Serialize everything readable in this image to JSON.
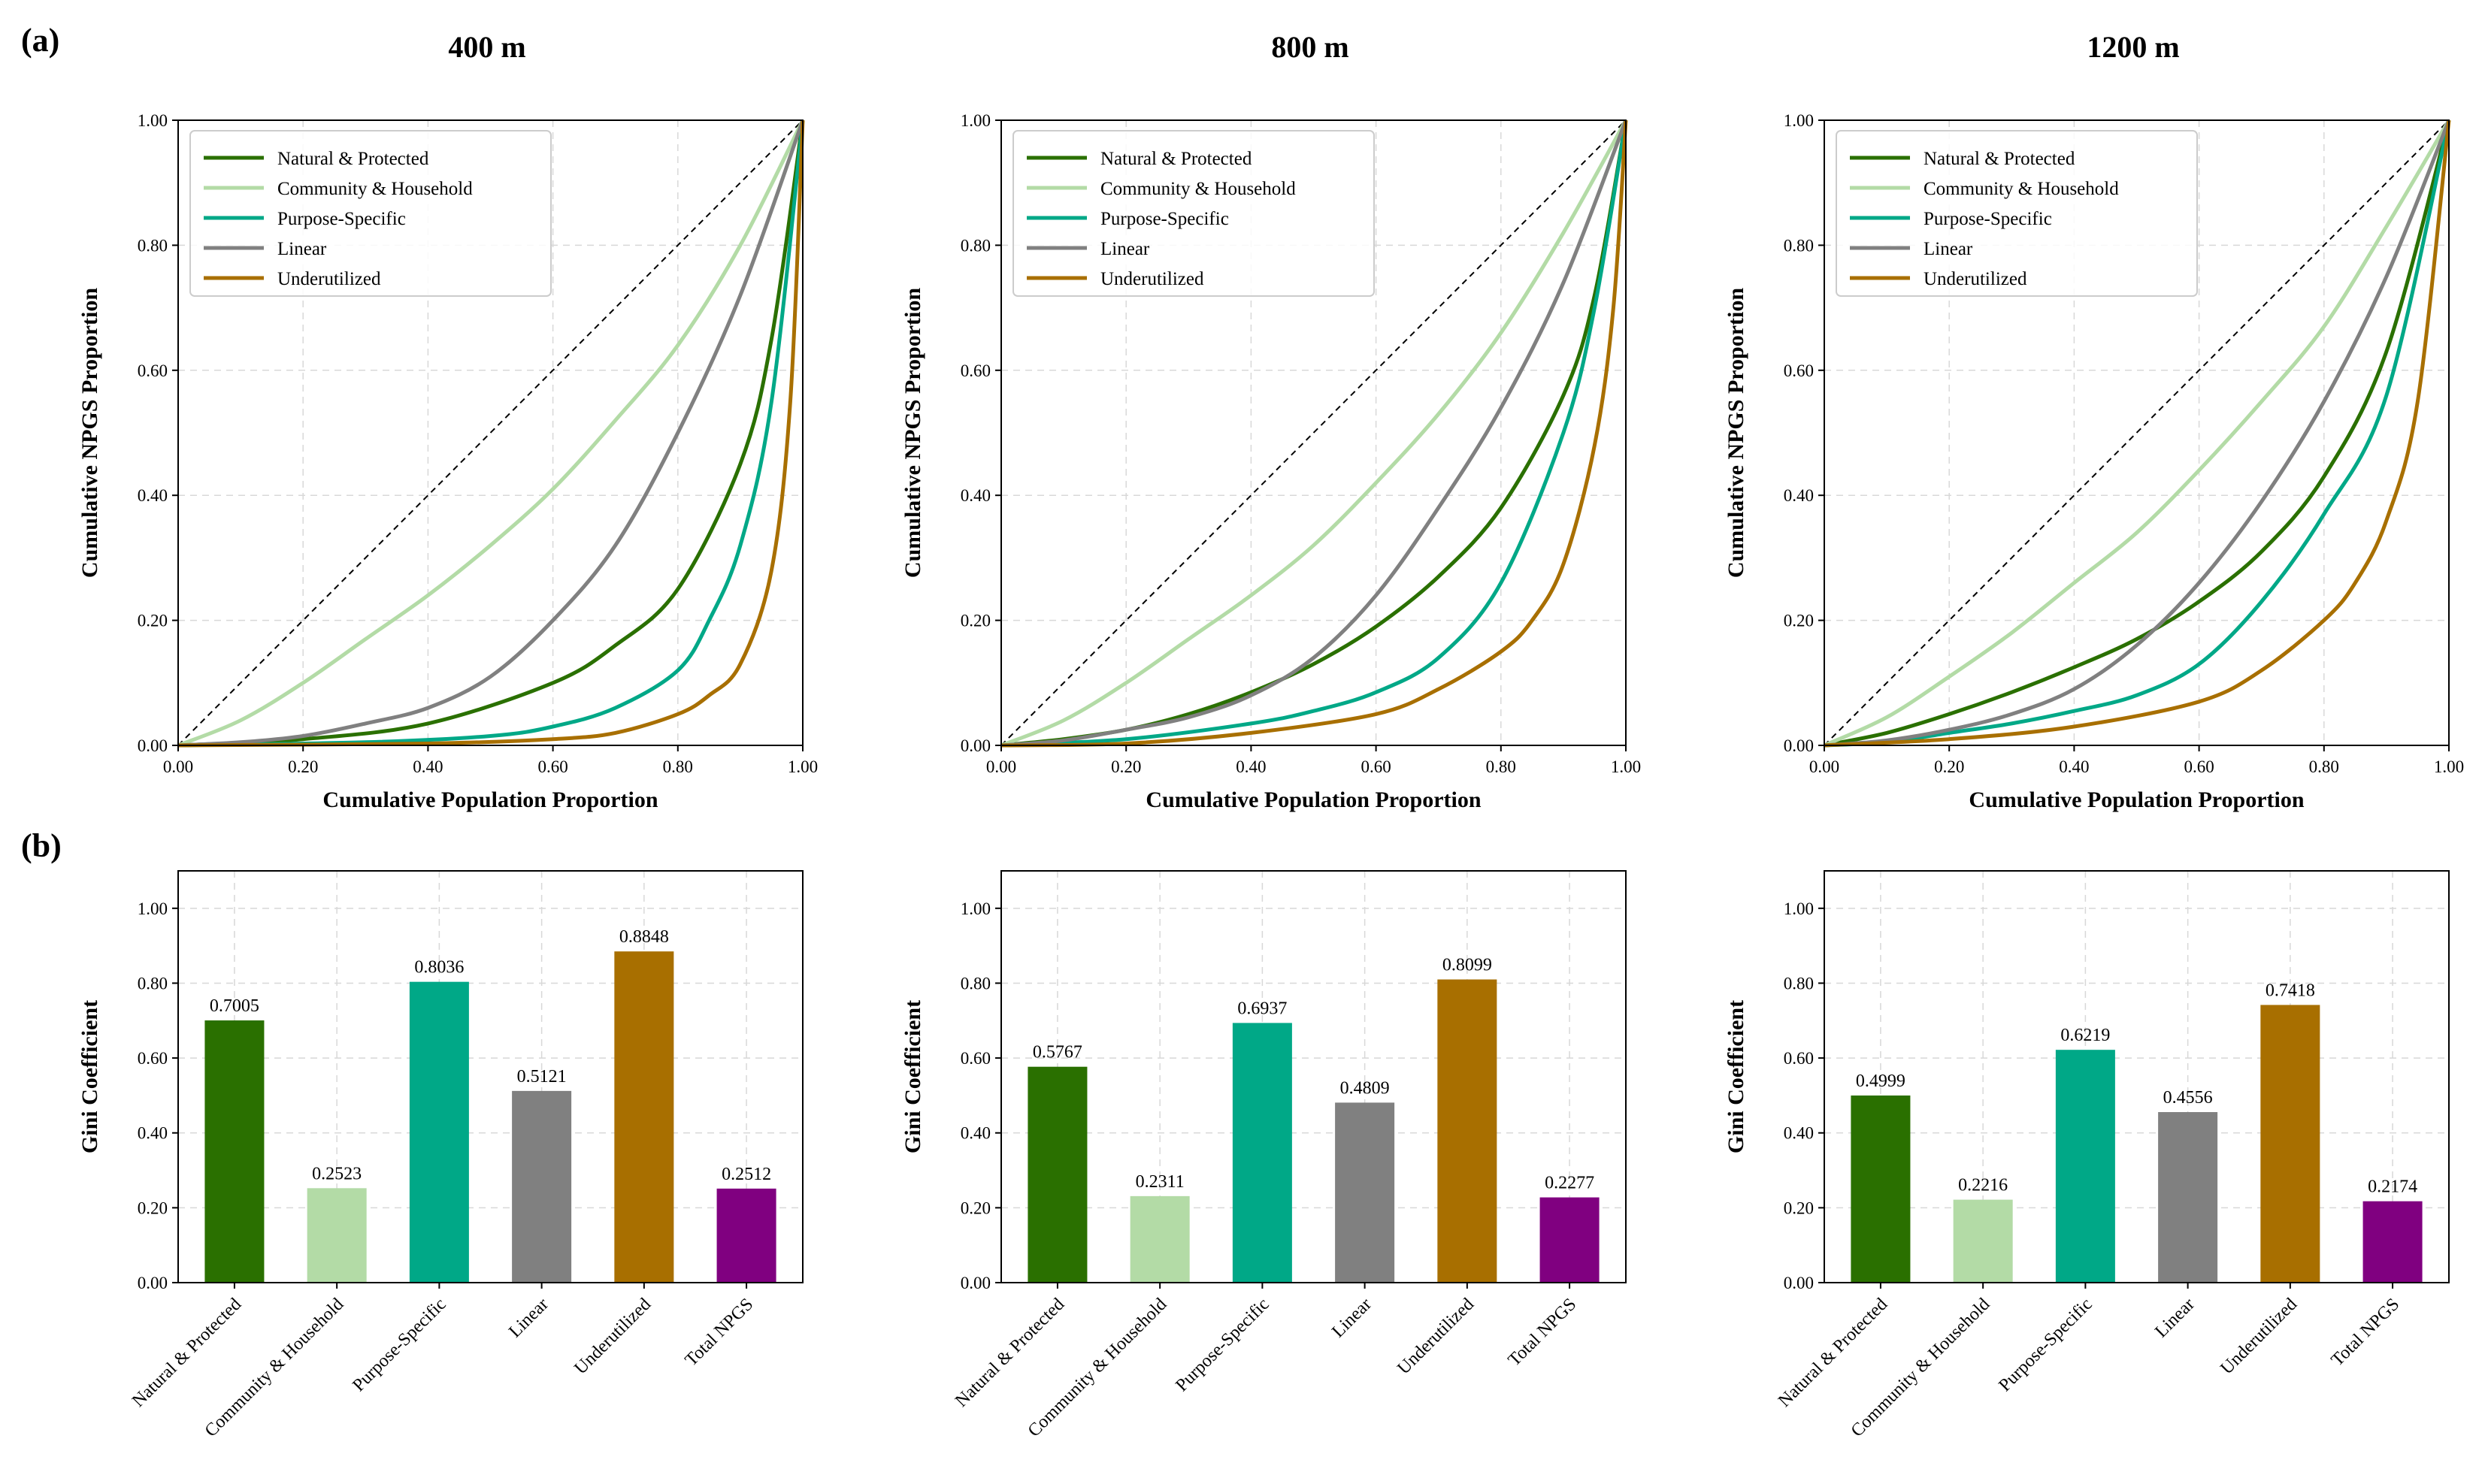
{
  "figure": {
    "panel_a_label": "(a)",
    "panel_b_label": "(b)",
    "column_titles": [
      "400 m",
      "800 m",
      "1200 m"
    ]
  },
  "colors": {
    "Natural & Protected": "#2a7000",
    "Community & Household": "#b3dba6",
    "Purpose-Specific": "#00a887",
    "Linear": "#808080",
    "Underutilized": "#a86f00",
    "Total NPGS": "#800080"
  },
  "chart_data": [
    {
      "type": "line",
      "title": "400 m",
      "xlabel": "Cumulative Population Proportion",
      "ylabel": "Cumulative NPGS Proportion",
      "xlim": [
        0,
        1
      ],
      "ylim": [
        0,
        1
      ],
      "ticks": [
        "0.00",
        "0.20",
        "0.40",
        "0.60",
        "0.80",
        "1.00"
      ],
      "legend": [
        "Natural & Protected",
        "Community & Household",
        "Purpose-Specific",
        "Linear",
        "Underutilized"
      ],
      "legend_position": "top-left",
      "diagonal": "equality line (dashed)",
      "series": [
        {
          "name": "Natural & Protected",
          "x": [
            0,
            0.2,
            0.4,
            0.6,
            0.7,
            0.8,
            0.9,
            0.95,
            1.0
          ],
          "y": [
            0,
            0.01,
            0.035,
            0.1,
            0.16,
            0.25,
            0.45,
            0.65,
            1.0
          ]
        },
        {
          "name": "Community & Household",
          "x": [
            0,
            0.1,
            0.2,
            0.3,
            0.4,
            0.5,
            0.6,
            0.7,
            0.8,
            0.9,
            1.0
          ],
          "y": [
            0,
            0.04,
            0.1,
            0.17,
            0.24,
            0.32,
            0.41,
            0.52,
            0.64,
            0.8,
            1.0
          ]
        },
        {
          "name": "Purpose-Specific",
          "x": [
            0,
            0.3,
            0.5,
            0.6,
            0.7,
            0.8,
            0.85,
            0.9,
            0.95,
            1.0
          ],
          "y": [
            0,
            0.005,
            0.015,
            0.03,
            0.06,
            0.12,
            0.2,
            0.32,
            0.55,
            1.0
          ]
        },
        {
          "name": "Linear",
          "x": [
            0,
            0.1,
            0.2,
            0.3,
            0.4,
            0.5,
            0.6,
            0.7,
            0.8,
            0.9,
            1.0
          ],
          "y": [
            0,
            0.005,
            0.015,
            0.035,
            0.06,
            0.11,
            0.2,
            0.32,
            0.5,
            0.72,
            1.0
          ]
        },
        {
          "name": "Underutilized",
          "x": [
            0,
            0.4,
            0.6,
            0.7,
            0.8,
            0.85,
            0.9,
            0.95,
            0.98,
            1.0
          ],
          "y": [
            0,
            0.003,
            0.01,
            0.02,
            0.05,
            0.08,
            0.13,
            0.28,
            0.55,
            1.0
          ]
        }
      ]
    },
    {
      "type": "line",
      "title": "800 m",
      "xlabel": "Cumulative Population Proportion",
      "ylabel": "Cumulative NPGS Proportion",
      "xlim": [
        0,
        1
      ],
      "ylim": [
        0,
        1
      ],
      "ticks": [
        "0.00",
        "0.20",
        "0.40",
        "0.60",
        "0.80",
        "1.00"
      ],
      "legend": [
        "Natural & Protected",
        "Community & Household",
        "Purpose-Specific",
        "Linear",
        "Underutilized"
      ],
      "legend_position": "top-left",
      "diagonal": "equality line (dashed)",
      "series": [
        {
          "name": "Natural & Protected",
          "x": [
            0,
            0.1,
            0.2,
            0.3,
            0.4,
            0.5,
            0.6,
            0.7,
            0.8,
            0.9,
            0.95,
            1.0
          ],
          "y": [
            0,
            0.01,
            0.025,
            0.05,
            0.085,
            0.13,
            0.19,
            0.27,
            0.38,
            0.56,
            0.72,
            1.0
          ]
        },
        {
          "name": "Community & Household",
          "x": [
            0,
            0.1,
            0.2,
            0.3,
            0.4,
            0.5,
            0.6,
            0.7,
            0.8,
            0.9,
            1.0
          ],
          "y": [
            0,
            0.04,
            0.1,
            0.17,
            0.24,
            0.32,
            0.42,
            0.53,
            0.66,
            0.82,
            1.0
          ]
        },
        {
          "name": "Purpose-Specific",
          "x": [
            0,
            0.2,
            0.4,
            0.5,
            0.6,
            0.7,
            0.8,
            0.9,
            0.95,
            1.0
          ],
          "y": [
            0,
            0.01,
            0.035,
            0.055,
            0.085,
            0.14,
            0.26,
            0.5,
            0.7,
            1.0
          ]
        },
        {
          "name": "Linear",
          "x": [
            0,
            0.1,
            0.2,
            0.3,
            0.4,
            0.5,
            0.6,
            0.7,
            0.8,
            0.9,
            1.0
          ],
          "y": [
            0,
            0.008,
            0.025,
            0.045,
            0.08,
            0.14,
            0.24,
            0.38,
            0.54,
            0.74,
            1.0
          ]
        },
        {
          "name": "Underutilized",
          "x": [
            0,
            0.2,
            0.4,
            0.6,
            0.7,
            0.8,
            0.85,
            0.9,
            0.95,
            0.98,
            1.0
          ],
          "y": [
            0,
            0.003,
            0.02,
            0.05,
            0.09,
            0.15,
            0.2,
            0.29,
            0.48,
            0.7,
            1.0
          ]
        }
      ]
    },
    {
      "type": "line",
      "title": "1200 m",
      "xlabel": "Cumulative Population Proportion",
      "ylabel": "Cumulative NPGS Proportion",
      "xlim": [
        0,
        1
      ],
      "ylim": [
        0,
        1
      ],
      "ticks": [
        "0.00",
        "0.20",
        "0.40",
        "0.60",
        "0.80",
        "1.00"
      ],
      "legend": [
        "Natural & Protected",
        "Community & Household",
        "Purpose-Specific",
        "Linear",
        "Underutilized"
      ],
      "legend_position": "top-left",
      "diagonal": "equality line (dashed)",
      "series": [
        {
          "name": "Natural & Protected",
          "x": [
            0,
            0.1,
            0.2,
            0.3,
            0.4,
            0.5,
            0.6,
            0.7,
            0.8,
            0.9,
            1.0
          ],
          "y": [
            0,
            0.02,
            0.05,
            0.085,
            0.125,
            0.17,
            0.23,
            0.31,
            0.43,
            0.63,
            1.0
          ]
        },
        {
          "name": "Community & Household",
          "x": [
            0,
            0.1,
            0.2,
            0.3,
            0.4,
            0.5,
            0.6,
            0.7,
            0.8,
            0.9,
            1.0
          ],
          "y": [
            0,
            0.045,
            0.11,
            0.18,
            0.26,
            0.34,
            0.44,
            0.55,
            0.67,
            0.83,
            1.0
          ]
        },
        {
          "name": "Purpose-Specific",
          "x": [
            0,
            0.1,
            0.2,
            0.3,
            0.4,
            0.5,
            0.6,
            0.7,
            0.8,
            0.9,
            1.0
          ],
          "y": [
            0,
            0.005,
            0.02,
            0.035,
            0.055,
            0.08,
            0.13,
            0.23,
            0.37,
            0.56,
            1.0
          ]
        },
        {
          "name": "Linear",
          "x": [
            0,
            0.1,
            0.2,
            0.3,
            0.4,
            0.5,
            0.6,
            0.7,
            0.8,
            0.9,
            1.0
          ],
          "y": [
            0,
            0.008,
            0.025,
            0.05,
            0.09,
            0.16,
            0.26,
            0.39,
            0.55,
            0.75,
            1.0
          ]
        },
        {
          "name": "Underutilized",
          "x": [
            0,
            0.2,
            0.4,
            0.6,
            0.7,
            0.8,
            0.85,
            0.9,
            0.95,
            1.0
          ],
          "y": [
            0,
            0.01,
            0.03,
            0.07,
            0.12,
            0.2,
            0.26,
            0.36,
            0.55,
            1.0
          ]
        }
      ]
    },
    {
      "type": "bar",
      "title": "400 m",
      "ylabel": "Gini Coefficient",
      "ylim": [
        0,
        1.1
      ],
      "ticks": [
        "0.00",
        "0.20",
        "0.40",
        "0.60",
        "0.80",
        "1.00"
      ],
      "categories": [
        "Natural & Protected",
        "Community & Household",
        "Purpose-Specific",
        "Linear",
        "Underutilized",
        "Total NPGS"
      ],
      "values": [
        0.7005,
        0.2523,
        0.8036,
        0.5121,
        0.8848,
        0.2512
      ],
      "labels": [
        "0.7005",
        "0.2523",
        "0.8036",
        "0.5121",
        "0.8848",
        "0.2512"
      ]
    },
    {
      "type": "bar",
      "title": "800 m",
      "ylabel": "Gini Coefficient",
      "ylim": [
        0,
        1.1
      ],
      "ticks": [
        "0.00",
        "0.20",
        "0.40",
        "0.60",
        "0.80",
        "1.00"
      ],
      "categories": [
        "Natural & Protected",
        "Community & Household",
        "Purpose-Specific",
        "Linear",
        "Underutilized",
        "Total NPGS"
      ],
      "values": [
        0.5767,
        0.2311,
        0.6937,
        0.4809,
        0.8099,
        0.2277
      ],
      "labels": [
        "0.5767",
        "0.2311",
        "0.6937",
        "0.4809",
        "0.8099",
        "0.2277"
      ]
    },
    {
      "type": "bar",
      "title": "1200 m",
      "ylabel": "Gini Coefficient",
      "ylim": [
        0,
        1.1
      ],
      "ticks": [
        "0.00",
        "0.20",
        "0.40",
        "0.60",
        "0.80",
        "1.00"
      ],
      "categories": [
        "Natural & Protected",
        "Community & Household",
        "Purpose-Specific",
        "Linear",
        "Underutilized",
        "Total NPGS"
      ],
      "values": [
        0.4999,
        0.2216,
        0.6219,
        0.4556,
        0.7418,
        0.2174
      ],
      "labels": [
        "0.4999",
        "0.2216",
        "0.6219",
        "0.4556",
        "0.7418",
        "0.2174"
      ]
    }
  ]
}
